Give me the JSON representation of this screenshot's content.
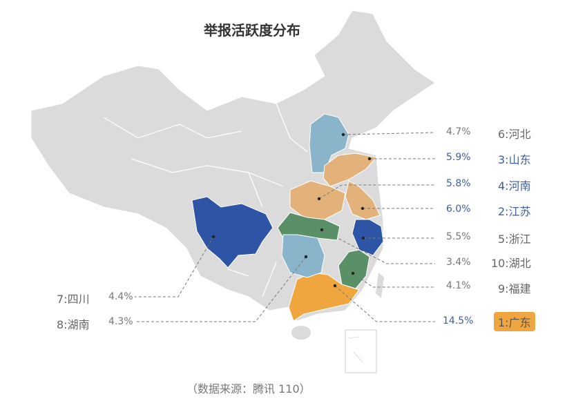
{
  "title": "举报活跃度分布",
  "source": "（数据来源：腾讯 110）",
  "colors": {
    "base": "#dcdbdc",
    "dark_blue": "#2e55a5",
    "light_blue": "#8ab4c9",
    "tan": "#e2b27a",
    "green": "#5a9068",
    "orange": "#f0a63e",
    "label_blue": "#3e5e9e",
    "label_gray": "#666666"
  },
  "regions": [
    {
      "rank_label": "6:河北",
      "share": "4.7%",
      "fill": "light_blue",
      "text": "gray"
    },
    {
      "rank_label": "3:山东",
      "share": "5.9%",
      "fill": "tan",
      "text": "blue"
    },
    {
      "rank_label": "4:河南",
      "share": "5.8%",
      "fill": "tan",
      "text": "blue"
    },
    {
      "rank_label": "2:江苏",
      "share": "6.0%",
      "fill": "tan",
      "text": "blue"
    },
    {
      "rank_label": "5:浙江",
      "share": "5.5%",
      "fill": "dark_blue",
      "text": "gray"
    },
    {
      "rank_label": "10:湖北",
      "share": "3.4%",
      "fill": "green",
      "text": "gray"
    },
    {
      "rank_label": "9:福建",
      "share": "4.1%",
      "fill": "green",
      "text": "gray"
    },
    {
      "rank_label": "1:广东",
      "share": "14.5%",
      "fill": "orange",
      "text": "blue",
      "badge": true
    },
    {
      "rank_label": "7:四川",
      "share": "4.4%",
      "fill": "dark_blue",
      "text": "gray"
    },
    {
      "rank_label": "8:湖南",
      "share": "4.3%",
      "fill": "light_blue",
      "text": "gray"
    }
  ]
}
